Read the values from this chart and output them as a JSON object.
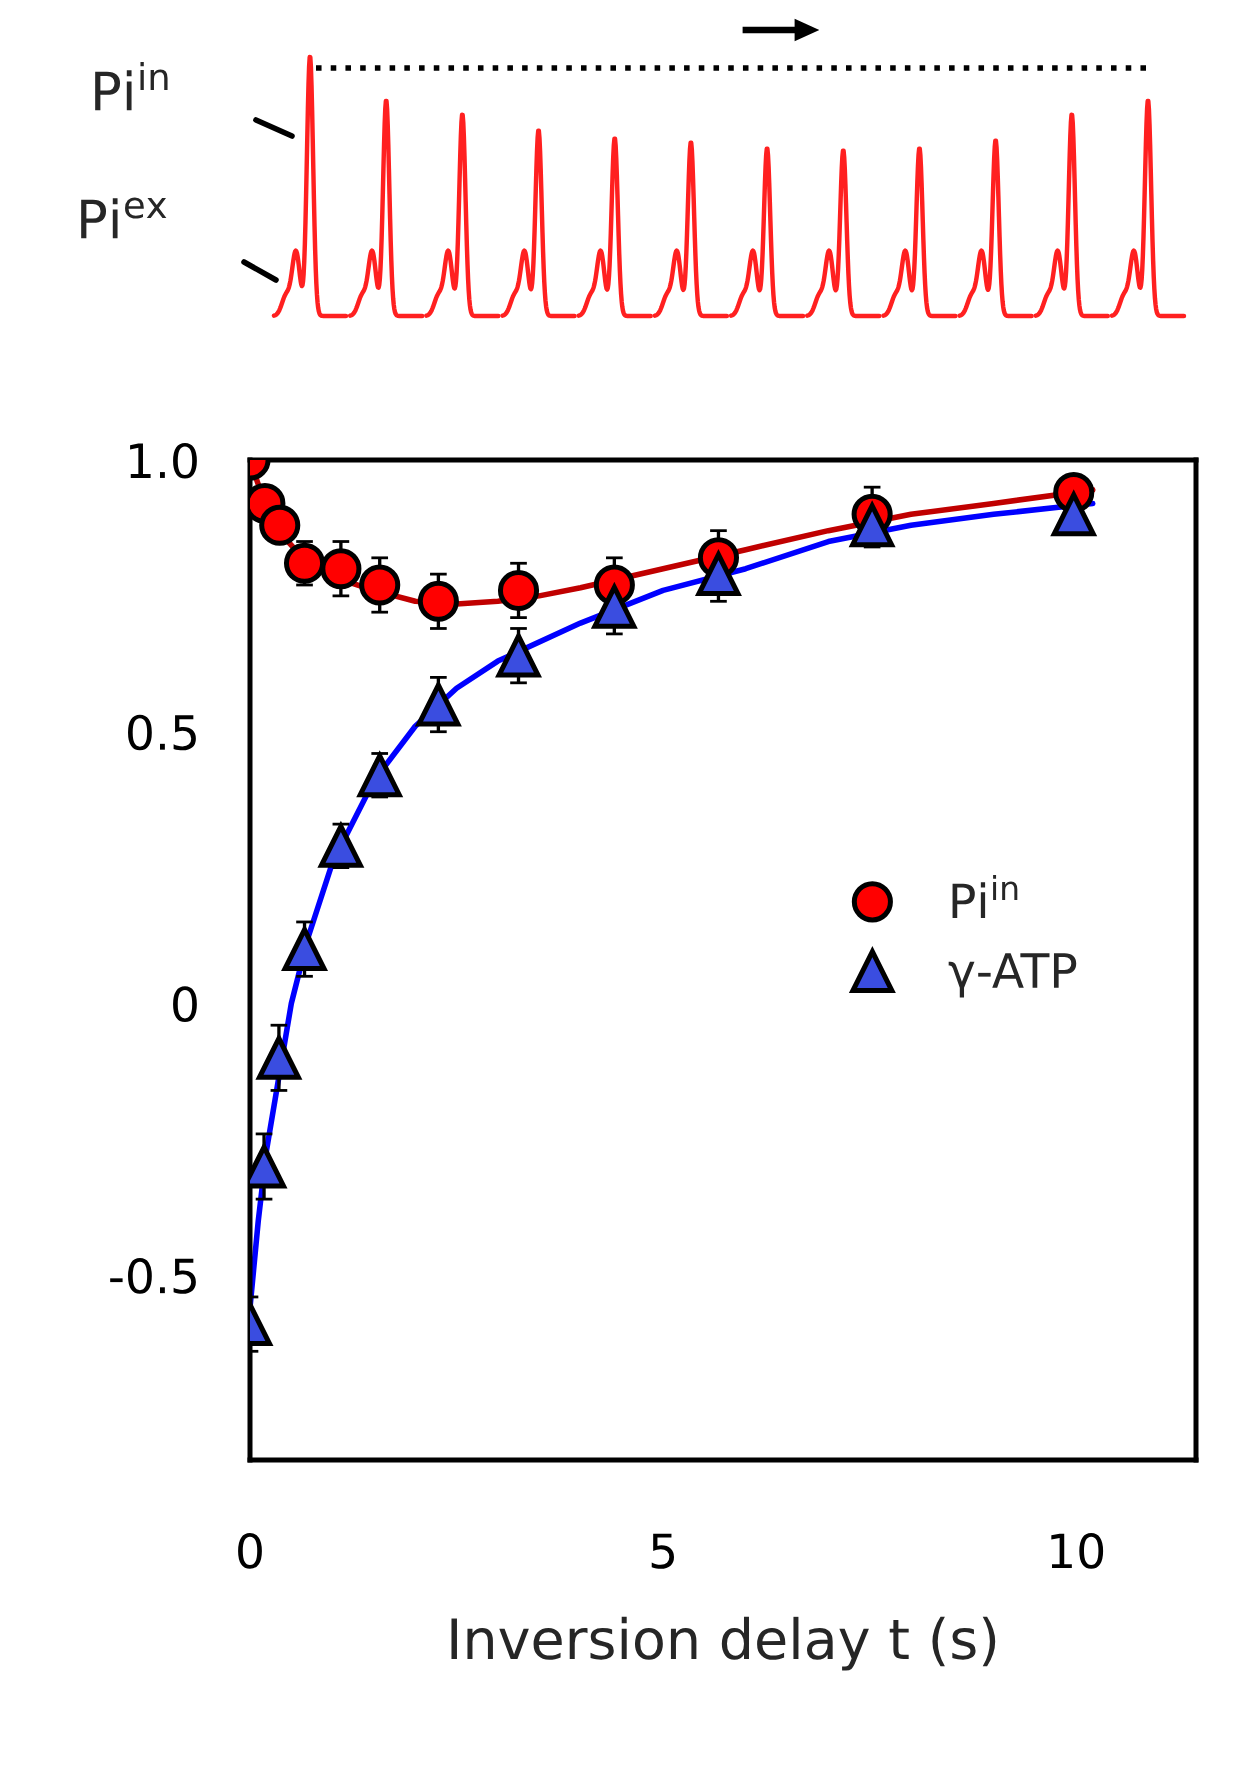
{
  "chart_data": {
    "type": "scatter",
    "xlabel": "Inversion delay t (s)",
    "annotations": [
      "Pi$^{in}$",
      "Pi$^{ex}$"
    ],
    "xlim": [
      0,
      11.45
    ],
    "ylim": [
      -0.84,
      1.0
    ],
    "xticks": [
      0,
      5,
      10
    ],
    "yticks": [
      {
        "value": 1.0,
        "label": "1.0"
      },
      {
        "value": 0.5,
        "label": "0.5"
      },
      0,
      {
        "value": -0.5,
        "label": "-0.5"
      }
    ],
    "grid": false,
    "legend": "right",
    "series": [
      {
        "type": "line",
        "color": "#c00000",
        "marker": "none",
        "line_style": "solid",
        "x": [
          0,
          0.2,
          0.4,
          0.7,
          1.0,
          1.5,
          2.0,
          2.5,
          3.0,
          3.5,
          4.0,
          5.0,
          6.0,
          7.0,
          8.0,
          9.0,
          10.2
        ],
        "values": [
          1.0,
          0.91,
          0.86,
          0.81,
          0.785,
          0.76,
          0.74,
          0.735,
          0.74,
          0.75,
          0.765,
          0.8,
          0.835,
          0.87,
          0.9,
          0.92,
          0.945
        ]
      },
      {
        "type": "line",
        "color": "#0000ff",
        "marker": "none",
        "line_style": "solid",
        "x": [
          0,
          0.1,
          0.2,
          0.5,
          0.7,
          1.0,
          1.5,
          2.0,
          2.5,
          3.0,
          4.0,
          5.0,
          6.0,
          7.0,
          8.0,
          9.0,
          10.2
        ],
        "values": [
          -0.56,
          -0.4,
          -0.27,
          0.0,
          0.12,
          0.26,
          0.41,
          0.51,
          0.58,
          0.63,
          0.7,
          0.76,
          0.8,
          0.85,
          0.88,
          0.9,
          0.92
        ]
      },
      {
        "name": "Pi$^{in}$",
        "color": "#ff0000",
        "marker": "circle",
        "x": [
          0,
          0.18,
          0.36,
          0.66,
          1.1,
          1.57,
          2.28,
          3.25,
          4.41,
          5.67,
          7.53,
          9.97
        ],
        "values": [
          1.0,
          0.92,
          0.88,
          0.81,
          0.8,
          0.77,
          0.74,
          0.76,
          0.77,
          0.82,
          0.9,
          0.94
        ],
        "errors": [
          null,
          null,
          null,
          0.04,
          0.05,
          0.05,
          0.05,
          0.05,
          0.05,
          0.05,
          0.05,
          0.03
        ]
      },
      {
        "name": "γ-ATP",
        "color": "#3a4de0",
        "marker": "triangle",
        "x": [
          0,
          0.17,
          0.35,
          0.66,
          1.1,
          1.57,
          2.28,
          3.25,
          4.41,
          5.67,
          7.53,
          9.97
        ],
        "values": [
          -0.59,
          -0.3,
          -0.1,
          0.1,
          0.29,
          0.42,
          0.55,
          0.64,
          0.73,
          0.79,
          0.88,
          0.9
        ],
        "errors": [
          0.05,
          0.06,
          0.06,
          0.05,
          0.04,
          0.04,
          0.05,
          0.05,
          0.05,
          0.05,
          0.04,
          0.03
        ]
      }
    ]
  }
}
